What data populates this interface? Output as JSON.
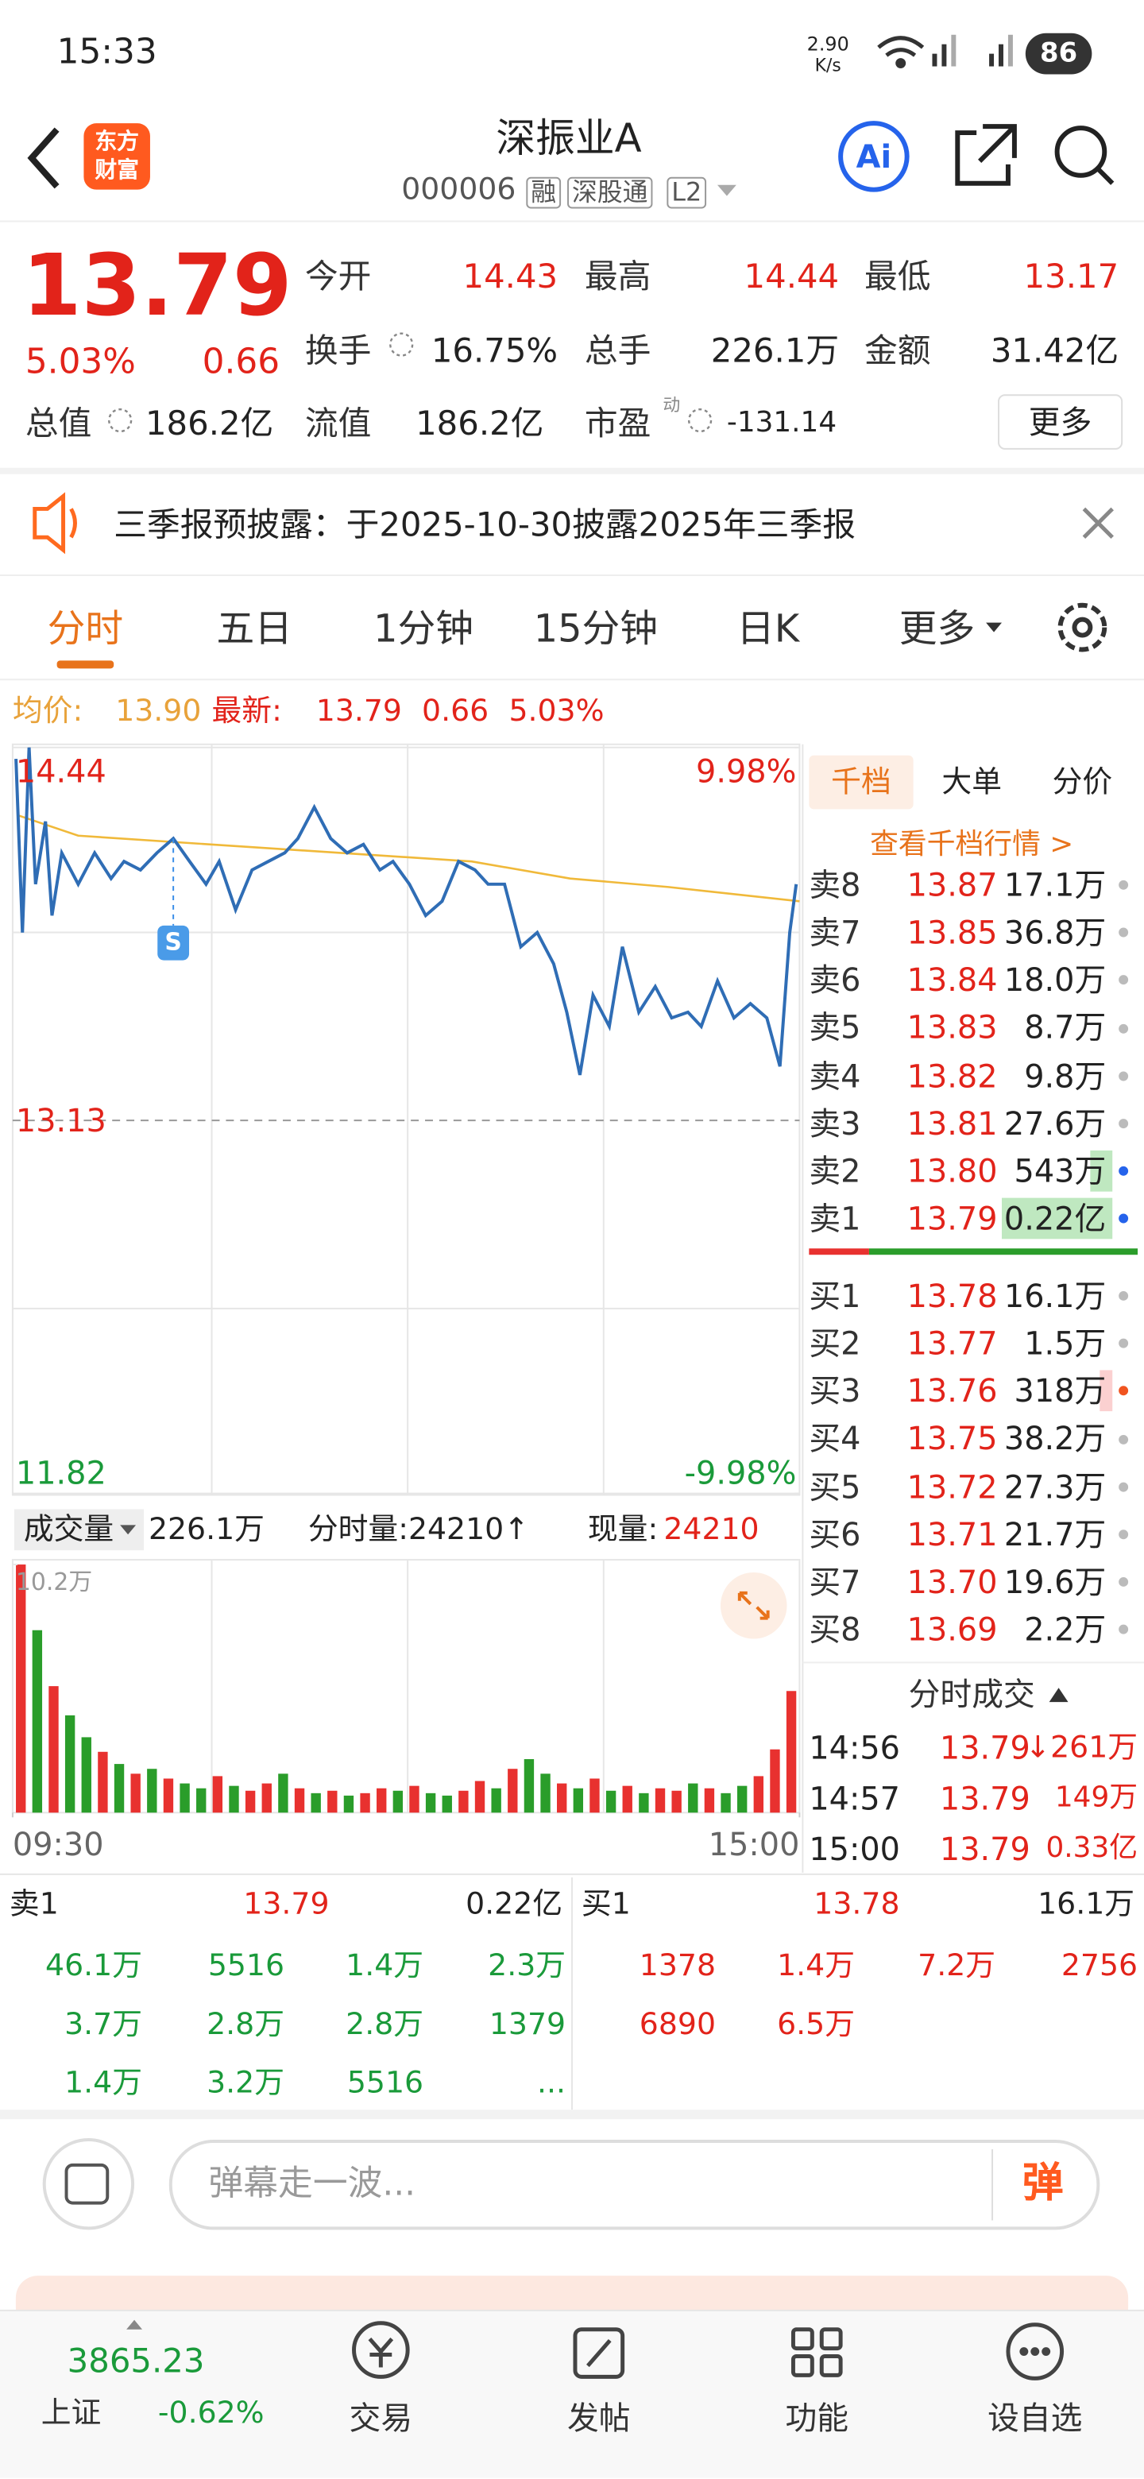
{
  "status_bar": {
    "time": "15:33",
    "net_speed": "2.90",
    "net_unit": "K/s",
    "battery": "86"
  },
  "header": {
    "logo": [
      "东方",
      "财富"
    ],
    "ai_button": "Ai",
    "title": "深振业A",
    "code": "000006",
    "tags": [
      "融",
      "深股通",
      "L2"
    ]
  },
  "quote": {
    "price": "13.79",
    "change_pct": "5.03%",
    "change": "0.66",
    "fields": [
      {
        "label": "今开",
        "value": "14.43"
      },
      {
        "label": "最高",
        "value": "14.44"
      },
      {
        "label": "最低",
        "value": "13.17"
      },
      {
        "label": "换手",
        "value": "16.75%"
      },
      {
        "label": "总手",
        "value": "226.1万"
      },
      {
        "label": "金额",
        "value": "31.42亿"
      },
      {
        "label": "总值",
        "value": "186.2亿"
      },
      {
        "label": "流值",
        "value": "186.2亿"
      },
      {
        "label": "市盈",
        "value": "-131.14"
      }
    ],
    "pe_badge": "动",
    "more": "更多"
  },
  "notice": "三季报预披露：于2025-10-30披露2025年三季报",
  "tabs": [
    "分时",
    "五日",
    "1分钟",
    "15分钟",
    "日K",
    "更多"
  ],
  "info": {
    "avg_label": "均价:",
    "avg": "13.90",
    "latest_label": "最新:",
    "latest": "13.79",
    "change": "0.66",
    "change_pct": "5.03%"
  },
  "chart_data": [
    {
      "type": "line",
      "xlim": [
        0,
        240
      ],
      "ylim": [
        11.82,
        14.44
      ],
      "yticks": [
        11.82,
        13.13,
        14.44
      ],
      "y2lim": [
        -9.98,
        9.98
      ],
      "y2ticks": [
        {
          "value": -9.98,
          "label": "-9.98%"
        },
        {
          "value": 9.98,
          "label": "9.98%"
        }
      ],
      "series": [
        {
          "color": "#2f6db5",
          "x": [
            1,
            3,
            5,
            7,
            10,
            12,
            15,
            20,
            25,
            30,
            34,
            39,
            44,
            49,
            54,
            59,
            63,
            68,
            73,
            78,
            83,
            87,
            92,
            97,
            102,
            107,
            112,
            116,
            121,
            126,
            131,
            136,
            141,
            145,
            150,
            155,
            160,
            165,
            169,
            173,
            177,
            182,
            186,
            191,
            196,
            201,
            206,
            210,
            215,
            220,
            225,
            230,
            234,
            237,
            239
          ],
          "values": [
            14.4,
            13.79,
            14.44,
            13.96,
            14.18,
            13.85,
            14.07,
            13.96,
            14.07,
            13.98,
            14.04,
            14.01,
            14.07,
            14.12,
            14.04,
            13.96,
            14.04,
            13.87,
            14.01,
            14.04,
            14.07,
            14.12,
            14.23,
            14.12,
            14.07,
            14.1,
            14.01,
            14.04,
            13.96,
            13.85,
            13.9,
            14.04,
            14.01,
            13.96,
            13.96,
            13.74,
            13.79,
            13.68,
            13.51,
            13.29,
            13.57,
            13.46,
            13.74,
            13.51,
            13.6,
            13.49,
            13.51,
            13.46,
            13.62,
            13.49,
            13.54,
            13.49,
            13.32,
            13.79,
            13.96
          ]
        },
        {
          "color": "#f0b93a",
          "x": [
            2,
            20,
            60,
            100,
            140,
            170,
            200,
            240
          ],
          "values": [
            14.2,
            14.13,
            14.1,
            14.07,
            14.04,
            13.98,
            13.95,
            13.9
          ]
        }
      ],
      "annotations": [
        {
          "text": "S",
          "x": 49
        }
      ]
    },
    {
      "type": "bar",
      "xlim": [
        0,
        240
      ],
      "xticks": [
        {
          "value": 0,
          "label": "09:30"
        },
        {
          "value": 240,
          "label": "15:00"
        }
      ],
      "ylim": [
        0,
        10.2
      ],
      "yticks": [
        {
          "value": 10.2,
          "label": "10.2万"
        }
      ],
      "values": [
        10.2,
        7.5,
        5.2,
        4.0,
        3.1,
        2.5,
        2.0,
        1.6,
        1.8,
        1.4,
        1.2,
        1.0,
        1.5,
        1.1,
        0.9,
        1.2,
        1.6,
        1.0,
        0.8,
        0.9,
        0.7,
        0.8,
        1.0,
        0.9,
        1.1,
        0.8,
        0.7,
        0.9,
        1.3,
        1.0,
        1.8,
        2.2,
        1.6,
        1.2,
        1.0,
        1.4,
        0.9,
        1.1,
        0.8,
        1.0,
        0.9,
        1.2,
        1.0,
        0.8,
        1.1,
        1.5,
        2.6,
        5.0
      ],
      "colors": [
        "#e8312f",
        "#2a9d2a",
        "#e8312f",
        "#2a9d2a",
        "#2a9d2a",
        "#e8312f",
        "#2a9d2a",
        "#e8312f",
        "#2a9d2a",
        "#e8312f",
        "#2a9d2a",
        "#2a9d2a",
        "#e8312f",
        "#2a9d2a",
        "#e8312f",
        "#e8312f",
        "#2a9d2a",
        "#e8312f",
        "#2a9d2a",
        "#e8312f",
        "#2a9d2a",
        "#e8312f",
        "#e8312f",
        "#2a9d2a",
        "#e8312f",
        "#2a9d2a",
        "#2a9d2a",
        "#e8312f",
        "#e8312f",
        "#2a9d2a",
        "#e8312f",
        "#2a9d2a",
        "#2a9d2a",
        "#e8312f",
        "#2a9d2a",
        "#e8312f",
        "#2a9d2a",
        "#e8312f",
        "#2a9d2a",
        "#e8312f",
        "#e8312f",
        "#2a9d2a",
        "#e8312f",
        "#2a9d2a",
        "#2a9d2a",
        "#e8312f",
        "#e8312f",
        "#e8312f"
      ]
    }
  ],
  "order_book": {
    "tabs": [
      "千档",
      "大单",
      "分价"
    ],
    "link": "查看千档行情 >",
    "asks": [
      {
        "label": "卖8",
        "price": "13.87",
        "volume": "17.1万"
      },
      {
        "label": "卖7",
        "price": "13.85",
        "volume": "36.8万"
      },
      {
        "label": "卖6",
        "price": "13.84",
        "volume": "18.0万"
      },
      {
        "label": "卖5",
        "price": "13.83",
        "volume": "8.7万"
      },
      {
        "label": "卖4",
        "price": "13.82",
        "volume": "9.8万"
      },
      {
        "label": "卖3",
        "price": "13.81",
        "volume": "27.6万"
      },
      {
        "label": "卖2",
        "price": "13.80",
        "volume": "543万"
      },
      {
        "label": "卖1",
        "price": "13.79",
        "volume": "0.22亿"
      }
    ],
    "bids": [
      {
        "label": "买1",
        "price": "13.78",
        "volume": "16.1万"
      },
      {
        "label": "买2",
        "price": "13.77",
        "volume": "1.5万"
      },
      {
        "label": "买3",
        "price": "13.76",
        "volume": "318万"
      },
      {
        "label": "买4",
        "price": "13.75",
        "volume": "38.2万"
      },
      {
        "label": "买5",
        "price": "13.72",
        "volume": "27.3万"
      },
      {
        "label": "买6",
        "price": "13.71",
        "volume": "21.7万"
      },
      {
        "label": "买7",
        "price": "13.70",
        "volume": "19.6万"
      },
      {
        "label": "买8",
        "price": "13.69",
        "volume": "2.2万"
      }
    ]
  },
  "volume_bar": {
    "label": "成交量",
    "total": "226.1万",
    "minute_label": "分时量:24210↑",
    "now_label": "现量:",
    "now": "24210"
  },
  "trades": {
    "title": "分时成交",
    "rows": [
      [
        "14:56",
        "13.79",
        "↓261万"
      ],
      [
        "14:57",
        "13.79",
        "149万"
      ],
      [
        "15:00",
        "13.79",
        "0.33亿"
      ]
    ]
  },
  "level1": {
    "sell": {
      "label": "卖1",
      "price": "13.79",
      "volume": "0.22亿",
      "queue": [
        [
          "46.1万",
          "5516",
          "1.4万",
          "2.3万"
        ],
        [
          "3.7万",
          "2.8万",
          "2.8万",
          "1379"
        ],
        [
          "1.4万",
          "3.2万",
          "5516",
          "..."
        ]
      ]
    },
    "buy": {
      "label": "买1",
      "price": "13.78",
      "volume": "16.1万",
      "queue": [
        [
          "1378",
          "1.4万",
          "7.2万",
          "2756"
        ],
        [
          "6890",
          "6.5万"
        ]
      ]
    }
  },
  "comment": {
    "placeholder": "弹幕走一波...",
    "button": "弹"
  },
  "bottom_nav": {
    "index_value": "3865.23",
    "index_name": "上证",
    "index_change": "-0.62%",
    "items": [
      "交易",
      "发帖",
      "功能",
      "设自选"
    ]
  }
}
